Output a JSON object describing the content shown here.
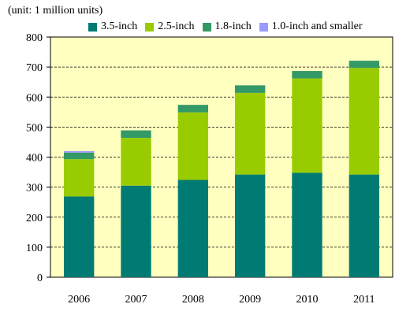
{
  "chart_data": {
    "type": "bar",
    "stacked": true,
    "unit_label": "(unit: 1 million units)",
    "categories": [
      "2006",
      "2007",
      "2008",
      "2009",
      "2010",
      "2011"
    ],
    "series": [
      {
        "name": "3.5-inch",
        "color": "#007B73",
        "values": [
          269,
          305,
          324,
          342,
          348,
          342
        ]
      },
      {
        "name": "2.5-inch",
        "color": "#99CC00",
        "values": [
          124,
          159,
          225,
          272,
          314,
          355
        ]
      },
      {
        "name": "1.8-inch",
        "color": "#339966",
        "values": [
          22,
          25,
          25,
          25,
          25,
          24
        ]
      },
      {
        "name": "1.0-inch and smaller",
        "color": "#9999FF",
        "values": [
          5,
          0,
          0,
          0,
          0,
          0
        ]
      }
    ],
    "ylim": [
      0,
      800
    ],
    "yticks": [
      0,
      100,
      200,
      300,
      400,
      500,
      600,
      700,
      800
    ],
    "grid": true,
    "legend_position": "top",
    "plot_background": "#FFFFC0"
  }
}
